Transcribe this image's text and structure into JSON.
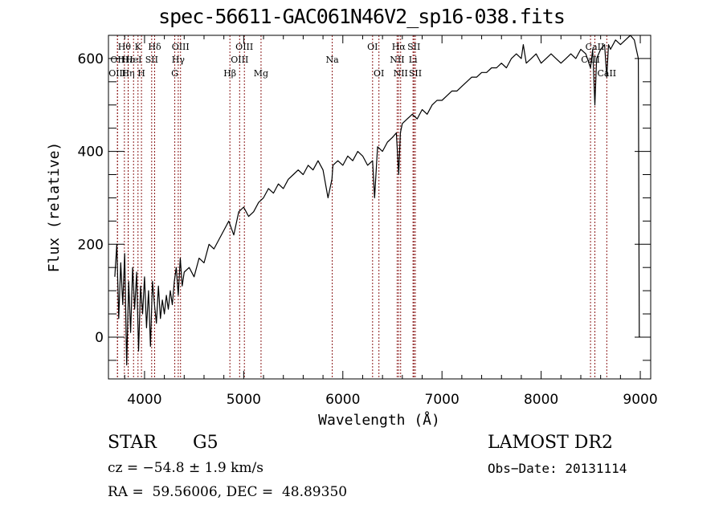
{
  "chart_data": {
    "type": "line",
    "title": "spec-56611-GAC061N46V2_sp16-038.fits",
    "xlabel": "Wavelength (Å)",
    "ylabel": "Flux (relative)",
    "xlim": [
      3636,
      9105
    ],
    "ylim": [
      -90,
      650
    ],
    "x_ticks": [
      4000,
      5000,
      6000,
      7000,
      8000,
      9000
    ],
    "x_tick_labels": [
      "4000",
      "5000",
      "6000",
      "7000",
      "8000",
      "9000"
    ],
    "y_ticks": [
      0,
      200,
      400,
      600
    ],
    "y_tick_labels": [
      "0",
      "200",
      "400",
      "600"
    ],
    "x_minor_step": 200,
    "y_minor_step": 50,
    "grid": false,
    "series": [
      {
        "name": "spectrum",
        "color": "#000000",
        "x": [
          3700,
          3720,
          3740,
          3760,
          3780,
          3800,
          3820,
          3840,
          3860,
          3880,
          3900,
          3920,
          3940,
          3960,
          3980,
          4000,
          4020,
          4040,
          4060,
          4080,
          4100,
          4120,
          4140,
          4160,
          4180,
          4200,
          4220,
          4240,
          4260,
          4280,
          4300,
          4320,
          4340,
          4360,
          4380,
          4400,
          4450,
          4500,
          4550,
          4600,
          4650,
          4700,
          4750,
          4800,
          4850,
          4900,
          4950,
          5000,
          5050,
          5100,
          5150,
          5200,
          5250,
          5300,
          5350,
          5400,
          5450,
          5500,
          5550,
          5600,
          5650,
          5700,
          5750,
          5800,
          5850,
          5890,
          5900,
          5950,
          6000,
          6050,
          6100,
          6150,
          6200,
          6250,
          6300,
          6320,
          6350,
          6400,
          6450,
          6500,
          6540,
          6563,
          6580,
          6600,
          6650,
          6700,
          6750,
          6800,
          6850,
          6900,
          6950,
          7000,
          7050,
          7100,
          7150,
          7200,
          7250,
          7300,
          7350,
          7400,
          7450,
          7500,
          7550,
          7600,
          7650,
          7700,
          7750,
          7800,
          7820,
          7850,
          7900,
          7950,
          8000,
          8050,
          8100,
          8150,
          8200,
          8250,
          8300,
          8350,
          8400,
          8450,
          8498,
          8520,
          8542,
          8560,
          8600,
          8640,
          8662,
          8680,
          8700,
          8750,
          8800,
          8850,
          8900,
          8940,
          8960,
          8980,
          8990,
          9000
        ],
        "y": [
          130,
          200,
          40,
          160,
          70,
          180,
          -60,
          120,
          10,
          150,
          60,
          140,
          -30,
          110,
          50,
          130,
          20,
          100,
          -20,
          120,
          70,
          30,
          110,
          40,
          80,
          50,
          90,
          60,
          100,
          70,
          120,
          150,
          90,
          170,
          110,
          140,
          150,
          130,
          170,
          160,
          200,
          190,
          210,
          230,
          250,
          220,
          270,
          280,
          260,
          270,
          290,
          300,
          320,
          310,
          330,
          320,
          340,
          350,
          360,
          350,
          370,
          360,
          380,
          360,
          300,
          340,
          370,
          380,
          370,
          390,
          380,
          400,
          390,
          370,
          380,
          300,
          410,
          400,
          420,
          430,
          440,
          350,
          440,
          460,
          470,
          480,
          470,
          490,
          480,
          500,
          510,
          510,
          520,
          530,
          530,
          540,
          550,
          560,
          560,
          570,
          570,
          580,
          580,
          590,
          580,
          600,
          610,
          600,
          630,
          590,
          600,
          610,
          590,
          600,
          610,
          600,
          590,
          600,
          610,
          600,
          620,
          610,
          580,
          620,
          500,
          600,
          620,
          630,
          560,
          630,
          620,
          640,
          630,
          640,
          650,
          640,
          620,
          600,
          0,
          0
        ]
      }
    ],
    "spectral_lines": [
      {
        "label": "Hθ",
        "x": 3797,
        "row": 1
      },
      {
        "label": "K",
        "x": 3934,
        "row": 1
      },
      {
        "label": "Hδ",
        "x": 4102,
        "row": 1
      },
      {
        "label": "OIII",
        "x": 4363,
        "row": 1
      },
      {
        "label": "OIII",
        "x": 5007,
        "row": 1
      },
      {
        "label": "OI",
        "x": 6300,
        "row": 1
      },
      {
        "label": "Hα",
        "x": 6563,
        "row": 1
      },
      {
        "label": "SII",
        "x": 6717,
        "row": 1
      },
      {
        "label": "CaII",
        "x": 8542,
        "row": 1
      },
      {
        "label": "OII",
        "x": 3727,
        "row": 2
      },
      {
        "label": "Hε",
        "x": 3835,
        "row": 2
      },
      {
        "label": "HeI",
        "x": 3889,
        "row": 2
      },
      {
        "label": "SII",
        "x": 4072,
        "row": 2
      },
      {
        "label": "Hγ",
        "x": 4340,
        "row": 2
      },
      {
        "label": "OIII",
        "x": 4959,
        "row": 2
      },
      {
        "label": "Na",
        "x": 5893,
        "row": 2
      },
      {
        "label": "NII",
        "x": 6548,
        "row": 2
      },
      {
        "label": "Li",
        "x": 6708,
        "row": 2
      },
      {
        "label": "CaII",
        "x": 8498,
        "row": 2
      },
      {
        "label": "OIII",
        "x": 3727,
        "row": 3
      },
      {
        "label": "Hη",
        "x": 3835,
        "row": 3
      },
      {
        "label": "H",
        "x": 3969,
        "row": 3
      },
      {
        "label": "G",
        "x": 4305,
        "row": 3
      },
      {
        "label": "Hβ",
        "x": 4861,
        "row": 3
      },
      {
        "label": "Mg",
        "x": 5175,
        "row": 3
      },
      {
        "label": "OI",
        "x": 6364,
        "row": 3
      },
      {
        "label": "NII",
        "x": 6583,
        "row": 3
      },
      {
        "label": "SII",
        "x": 6731,
        "row": 3
      },
      {
        "label": "CaII",
        "x": 8662,
        "row": 3
      }
    ],
    "line_marker_color": "#8b1a1a"
  },
  "info": {
    "object_class": "STAR",
    "subclass": "G5",
    "redshift": "cz = −54.8 ± 1.9 km/s",
    "coordinates": "RA =  59.56006, DEC =  48.89350",
    "survey": "LAMOST DR2",
    "obs_date": "Obs−Date: 20131114"
  }
}
